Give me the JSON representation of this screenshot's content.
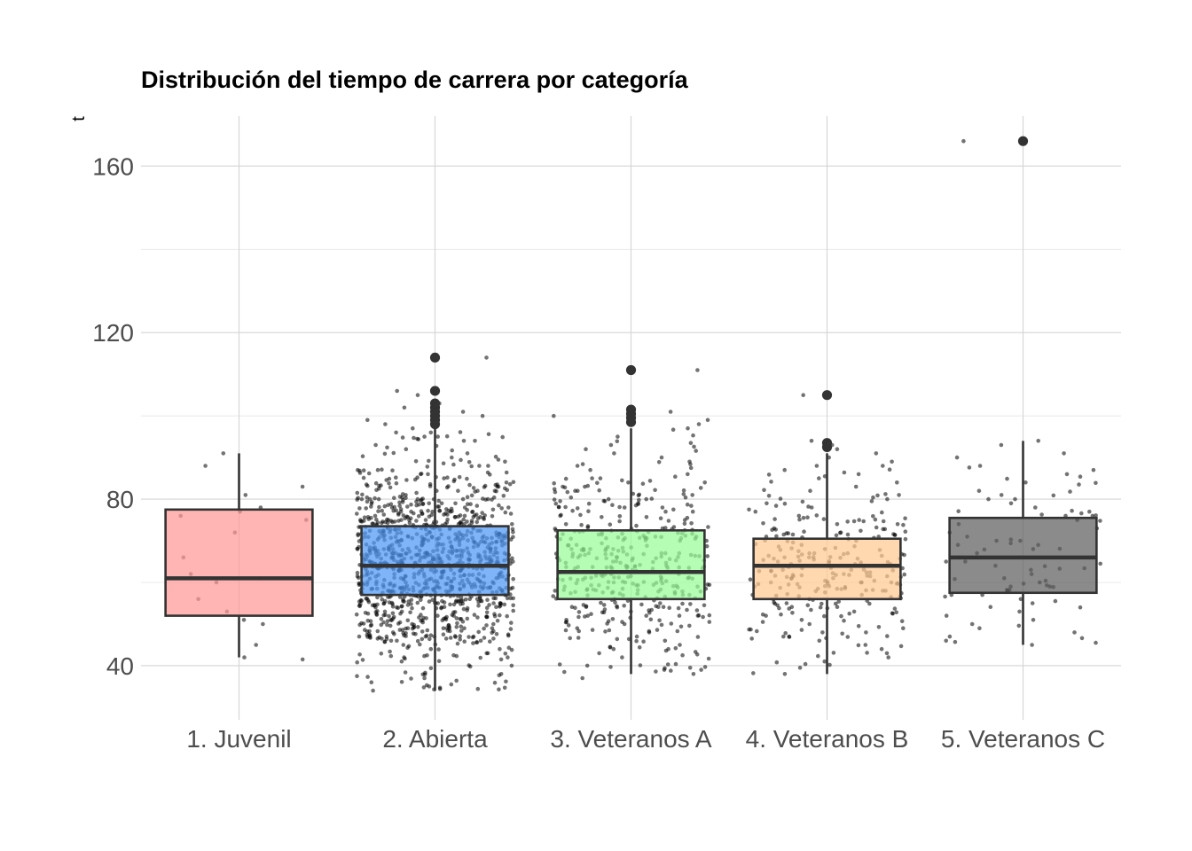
{
  "chart_data": {
    "type": "boxplot",
    "title": "Distribución del tiempo de carrera por categoría",
    "xlabel": "",
    "ylabel": "t",
    "ylim": [
      27,
      172
    ],
    "yticks": [
      40,
      80,
      120,
      160
    ],
    "grid": true,
    "legend": "none",
    "categories": [
      "1. Juvenil",
      "2. Abierta",
      "3. Veteranos A",
      "4. Veteranos B",
      "5. Veteranos C"
    ],
    "colors": [
      "#ff9896",
      "#4f97f6",
      "#98fb98",
      "#ffc992",
      "#5e5e5e"
    ],
    "boxes": [
      {
        "category": "1. Juvenil",
        "whisker_low": 42,
        "q1": 52,
        "median": 61,
        "q3": 77.5,
        "whisker_high": 91,
        "outliers": []
      },
      {
        "category": "2. Abierta",
        "whisker_low": 34,
        "q1": 57,
        "median": 64,
        "q3": 73.5,
        "whisker_high": 97,
        "outliers": [
          98,
          99,
          100,
          101,
          102,
          103,
          106,
          114
        ]
      },
      {
        "category": "3. Veteranos A",
        "whisker_low": 38,
        "q1": 56,
        "median": 62.5,
        "q3": 72.5,
        "whisker_high": 97,
        "outliers": [
          98.5,
          99.5,
          100.5,
          101.5,
          111
        ]
      },
      {
        "category": "4. Veteranos B",
        "whisker_low": 38,
        "q1": 56,
        "median": 64,
        "q3": 70.5,
        "whisker_high": 91,
        "outliers": [
          92.5,
          93.5,
          105
        ]
      },
      {
        "category": "5. Veteranos C",
        "whisker_low": 45,
        "q1": 57.5,
        "median": 66,
        "q3": 75.5,
        "whisker_high": 94,
        "outliers": [
          166
        ]
      }
    ],
    "jitter_points": [
      {
        "category": "1. Juvenil",
        "values": [
          42,
          41.5,
          45,
          51,
          50,
          53,
          56,
          60,
          61,
          62,
          66,
          72,
          75,
          76,
          77,
          78,
          81,
          83,
          88,
          91
        ]
      },
      {
        "category": "2. Abierta",
        "values": [
          34,
          35,
          36,
          37,
          38,
          40,
          41,
          42,
          43,
          44,
          45,
          46,
          47,
          48,
          49,
          50,
          51,
          52,
          53,
          54,
          55,
          56,
          57,
          58,
          59,
          60,
          61,
          62,
          63,
          64,
          65,
          66,
          67,
          68,
          69,
          70,
          71,
          72,
          73,
          74,
          75,
          76,
          77,
          78,
          79,
          80,
          81,
          82,
          83,
          84,
          85,
          86,
          87,
          88,
          89,
          90,
          91,
          92,
          93,
          94,
          95,
          96,
          97,
          98,
          99,
          100,
          101,
          102,
          103,
          105,
          106,
          114
        ]
      },
      {
        "category": "3. Veteranos A",
        "values": [
          37,
          38,
          39,
          40,
          42,
          43,
          44,
          45,
          46,
          47,
          48,
          49,
          50,
          51,
          52,
          53,
          54,
          55,
          56,
          57,
          58,
          59,
          60,
          61,
          62,
          63,
          64,
          65,
          66,
          67,
          68,
          69,
          70,
          71,
          72,
          73,
          74,
          75,
          76,
          77,
          78,
          79,
          80,
          81,
          82,
          83,
          84,
          85,
          86,
          87,
          88,
          89,
          90,
          91,
          92,
          93,
          95,
          97,
          98,
          99,
          100,
          101,
          111
        ]
      },
      {
        "category": "4. Veteranos B",
        "values": [
          38,
          42,
          43,
          44,
          45,
          46,
          47,
          48,
          49,
          50,
          51,
          52,
          53,
          54,
          55,
          56,
          57,
          58,
          59,
          60,
          61,
          62,
          63,
          64,
          65,
          66,
          67,
          68,
          69,
          70,
          71,
          72,
          73,
          74,
          75,
          76,
          77,
          78,
          79,
          80,
          81,
          82,
          83,
          84,
          85,
          86,
          87,
          88,
          89,
          90,
          91,
          92,
          93,
          94,
          105
        ]
      },
      {
        "category": "5. Veteranos C",
        "values": [
          45,
          46,
          48,
          49,
          50,
          51,
          52,
          53,
          54,
          55,
          56,
          57,
          58,
          59,
          60,
          61,
          62,
          63,
          64,
          65,
          66,
          67,
          68,
          69,
          70,
          71,
          72,
          73,
          74,
          75,
          76,
          77,
          78,
          79,
          80,
          81,
          82,
          84,
          86,
          88,
          90,
          91,
          93,
          94,
          166
        ]
      }
    ],
    "point_counts": [
      20,
      1150,
      420,
      270,
      90
    ]
  }
}
